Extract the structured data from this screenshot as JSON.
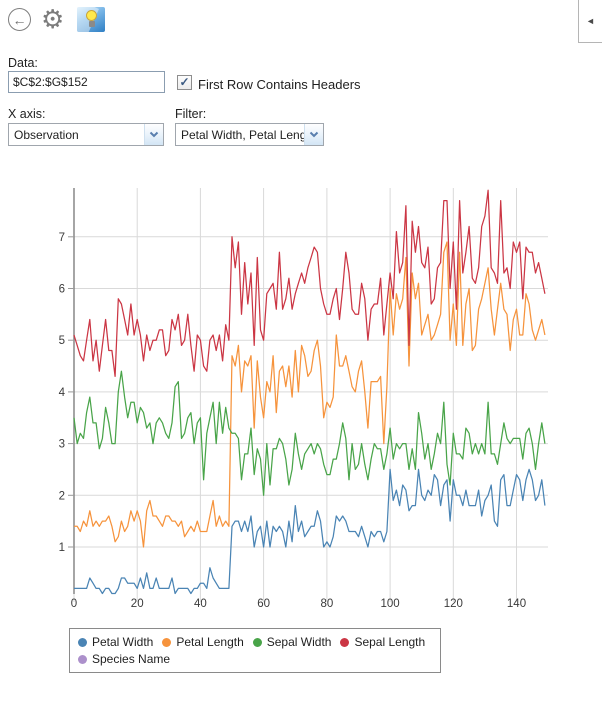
{
  "icons": {
    "back": "←",
    "gear": "⚙",
    "collapse": "◄",
    "check": "✓"
  },
  "form": {
    "data_label": "Data:",
    "data_value": "$C$2:$G$152",
    "header_checkbox_label": "First Row Contains Headers",
    "header_checkbox_checked": true,
    "xaxis_label": "X axis:",
    "xaxis_value": "Observation",
    "filter_label": "Filter:",
    "filter_value": "Petal Width, Petal Length"
  },
  "chart_data": {
    "type": "line",
    "title": "",
    "xlabel": "",
    "ylabel": "",
    "x": {
      "start": 0,
      "step": 1,
      "count": 150
    },
    "x_ticks": [
      0,
      20,
      40,
      60,
      80,
      100,
      120,
      140
    ],
    "y_ticks": [
      1,
      2,
      3,
      4,
      5,
      6,
      7
    ],
    "xlim": [
      0,
      149
    ],
    "ylim": [
      0.1,
      7.9
    ],
    "grid": true,
    "legend_position": "bottom",
    "series": [
      {
        "name": "Petal Width",
        "color": "#4a84b4",
        "values": [
          0.2,
          0.2,
          0.2,
          0.2,
          0.2,
          0.4,
          0.3,
          0.2,
          0.2,
          0.1,
          0.2,
          0.2,
          0.1,
          0.1,
          0.2,
          0.4,
          0.4,
          0.3,
          0.3,
          0.3,
          0.2,
          0.4,
          0.2,
          0.5,
          0.2,
          0.2,
          0.4,
          0.2,
          0.2,
          0.2,
          0.2,
          0.4,
          0.1,
          0.2,
          0.2,
          0.2,
          0.2,
          0.1,
          0.2,
          0.2,
          0.3,
          0.3,
          0.2,
          0.6,
          0.4,
          0.3,
          0.2,
          0.2,
          0.2,
          0.2,
          1.4,
          1.5,
          1.5,
          1.3,
          1.5,
          1.3,
          1.6,
          1.0,
          1.3,
          1.4,
          1.0,
          1.5,
          1.0,
          1.4,
          1.3,
          1.4,
          1.3,
          1.0,
          1.5,
          1.1,
          1.8,
          1.3,
          1.5,
          1.2,
          1.3,
          1.4,
          1.4,
          1.7,
          1.5,
          1.0,
          1.1,
          1.0,
          1.2,
          1.6,
          1.5,
          1.6,
          1.5,
          1.3,
          1.3,
          1.3,
          1.2,
          1.4,
          1.2,
          1.0,
          1.3,
          1.2,
          1.3,
          1.3,
          1.1,
          1.3,
          2.5,
          1.9,
          2.1,
          1.8,
          2.2,
          2.1,
          1.7,
          1.8,
          1.8,
          2.5,
          2.0,
          1.9,
          2.1,
          2.0,
          2.4,
          2.3,
          1.8,
          2.2,
          2.3,
          1.5,
          2.3,
          2.0,
          2.0,
          1.8,
          2.1,
          1.8,
          1.8,
          1.8,
          2.1,
          1.6,
          1.9,
          2.0,
          2.2,
          1.5,
          1.4,
          2.3,
          2.4,
          1.8,
          1.8,
          2.1,
          2.4,
          2.3,
          1.9,
          2.3,
          2.5,
          2.3,
          1.9,
          2.0,
          2.3,
          1.8
        ]
      },
      {
        "name": "Petal Length",
        "color": "#f6933c",
        "values": [
          1.4,
          1.4,
          1.3,
          1.5,
          1.4,
          1.7,
          1.4,
          1.5,
          1.4,
          1.5,
          1.5,
          1.6,
          1.4,
          1.1,
          1.2,
          1.5,
          1.3,
          1.4,
          1.7,
          1.5,
          1.7,
          1.5,
          1.0,
          1.7,
          1.9,
          1.6,
          1.6,
          1.5,
          1.4,
          1.6,
          1.6,
          1.5,
          1.5,
          1.4,
          1.5,
          1.2,
          1.3,
          1.4,
          1.3,
          1.5,
          1.3,
          1.3,
          1.3,
          1.6,
          1.9,
          1.4,
          1.6,
          1.4,
          1.5,
          1.4,
          4.7,
          4.5,
          4.9,
          4.0,
          4.6,
          4.5,
          4.7,
          3.3,
          4.6,
          3.9,
          3.5,
          4.2,
          4.0,
          4.7,
          3.6,
          4.4,
          4.5,
          4.1,
          4.5,
          3.9,
          4.8,
          4.0,
          4.9,
          4.7,
          4.3,
          4.4,
          4.8,
          5.0,
          4.5,
          3.5,
          3.8,
          3.7,
          3.9,
          5.1,
          4.5,
          4.5,
          4.7,
          4.4,
          4.1,
          4.0,
          4.4,
          4.6,
          4.0,
          3.3,
          4.2,
          4.2,
          4.2,
          4.3,
          3.0,
          4.1,
          6.0,
          5.1,
          5.9,
          5.6,
          5.8,
          6.6,
          4.5,
          6.3,
          5.8,
          6.1,
          5.1,
          5.3,
          5.5,
          5.0,
          5.1,
          5.3,
          5.5,
          6.7,
          6.9,
          5.0,
          5.7,
          4.9,
          6.7,
          4.9,
          5.7,
          6.0,
          4.8,
          4.9,
          5.6,
          5.8,
          6.1,
          6.4,
          5.6,
          5.1,
          5.6,
          6.1,
          5.6,
          5.5,
          4.8,
          5.4,
          5.6,
          5.1,
          5.1,
          5.9,
          5.7,
          5.2,
          5.0,
          5.2,
          5.4,
          5.1
        ]
      },
      {
        "name": "Sepal Width",
        "color": "#49a449",
        "values": [
          3.5,
          3.0,
          3.2,
          3.1,
          3.6,
          3.9,
          3.4,
          3.4,
          2.9,
          3.1,
          3.7,
          3.4,
          3.0,
          3.0,
          4.0,
          4.4,
          3.9,
          3.5,
          3.8,
          3.8,
          3.4,
          3.7,
          3.6,
          3.3,
          3.4,
          3.0,
          3.4,
          3.5,
          3.4,
          3.2,
          3.1,
          3.4,
          4.1,
          4.2,
          3.1,
          3.2,
          3.5,
          3.6,
          3.0,
          3.4,
          3.5,
          2.3,
          3.2,
          3.5,
          3.8,
          3.0,
          3.8,
          3.2,
          3.7,
          3.3,
          3.2,
          3.2,
          3.1,
          2.3,
          2.8,
          2.8,
          3.3,
          2.4,
          2.9,
          2.7,
          2.0,
          3.0,
          2.2,
          2.9,
          2.9,
          3.1,
          3.0,
          2.7,
          2.2,
          2.5,
          3.2,
          2.8,
          2.5,
          2.8,
          2.9,
          3.0,
          2.8,
          3.0,
          2.9,
          2.6,
          2.4,
          2.4,
          2.7,
          2.7,
          3.0,
          3.4,
          3.1,
          2.3,
          3.0,
          2.5,
          2.6,
          3.0,
          2.6,
          2.3,
          2.7,
          3.0,
          2.9,
          2.9,
          2.5,
          2.8,
          3.3,
          2.7,
          3.0,
          2.9,
          3.0,
          3.0,
          2.5,
          2.9,
          2.5,
          3.6,
          3.2,
          2.7,
          3.0,
          2.5,
          2.8,
          3.2,
          3.0,
          3.8,
          2.6,
          2.2,
          3.2,
          2.8,
          2.8,
          2.7,
          3.3,
          3.2,
          2.8,
          3.0,
          2.8,
          3.0,
          2.8,
          3.8,
          2.8,
          2.8,
          2.6,
          3.0,
          3.4,
          3.1,
          3.0,
          3.1,
          3.1,
          3.1,
          2.7,
          3.2,
          3.3,
          3.0,
          2.5,
          3.0,
          3.4,
          3.0
        ]
      },
      {
        "name": "Sepal Length",
        "color": "#cb3644",
        "values": [
          5.1,
          4.9,
          4.7,
          4.6,
          5.0,
          5.4,
          4.6,
          5.0,
          4.4,
          4.9,
          5.4,
          4.8,
          4.8,
          4.3,
          5.8,
          5.7,
          5.4,
          5.1,
          5.7,
          5.1,
          5.4,
          5.1,
          4.6,
          5.1,
          4.8,
          5.0,
          5.0,
          5.2,
          5.2,
          4.7,
          4.8,
          5.4,
          5.2,
          5.5,
          4.9,
          5.0,
          5.5,
          4.9,
          4.4,
          5.1,
          5.0,
          4.5,
          4.4,
          5.0,
          5.1,
          4.8,
          5.1,
          4.6,
          5.3,
          5.0,
          7.0,
          6.4,
          6.9,
          5.5,
          6.5,
          5.7,
          6.3,
          4.9,
          6.6,
          5.2,
          5.0,
          5.9,
          6.0,
          6.1,
          5.6,
          6.7,
          5.6,
          5.8,
          6.2,
          5.6,
          5.9,
          6.1,
          6.3,
          6.1,
          6.4,
          6.6,
          6.8,
          6.7,
          6.0,
          5.7,
          5.5,
          5.5,
          5.8,
          6.0,
          5.4,
          6.0,
          6.7,
          6.3,
          5.6,
          5.5,
          5.5,
          6.1,
          5.8,
          5.0,
          5.6,
          5.7,
          5.7,
          6.2,
          5.1,
          5.7,
          6.3,
          5.8,
          7.1,
          6.3,
          6.5,
          7.6,
          4.9,
          7.3,
          6.7,
          7.2,
          6.5,
          6.4,
          6.8,
          5.7,
          5.8,
          6.4,
          6.5,
          7.7,
          7.7,
          6.0,
          6.9,
          5.6,
          7.7,
          6.3,
          6.7,
          7.2,
          6.2,
          6.1,
          6.4,
          7.2,
          7.4,
          7.9,
          6.4,
          6.3,
          6.1,
          7.7,
          6.3,
          6.4,
          6.0,
          6.9,
          6.7,
          6.9,
          5.8,
          6.8,
          6.7,
          6.7,
          6.3,
          6.5,
          6.2,
          5.9
        ]
      },
      {
        "name": "Species Name",
        "color": "#ac90cb",
        "values": []
      }
    ]
  }
}
